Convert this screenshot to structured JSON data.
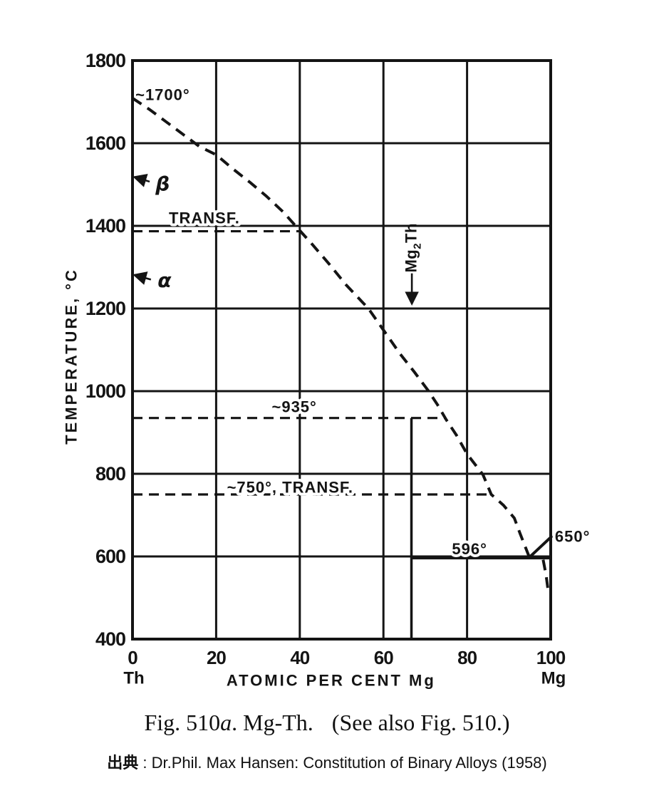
{
  "figure": {
    "caption": {
      "prefix": "Fig. 510",
      "italic_part": "a",
      "middle": ". Mg-Th.",
      "suffix": "(See also Fig. 510.)"
    },
    "source": {
      "label": "出典",
      "text": " : Dr.Phil. Max Hansen: Constitution of Binary Alloys (1958)"
    }
  },
  "chart_data": {
    "type": "line",
    "title": "Mg-Th binary alloy phase diagram",
    "xlabel": "ATOMIC PER CENT Mg",
    "ylabel": "TEMPERATURE, °C",
    "xlim": [
      0,
      100
    ],
    "ylim": [
      400,
      1800
    ],
    "x_ticks": [
      0,
      20,
      40,
      60,
      80,
      100
    ],
    "y_ticks": [
      1800,
      1600,
      1400,
      1200,
      1000,
      800,
      600,
      400
    ],
    "x_endpoint_labels": {
      "left": "Th",
      "right": "Mg"
    },
    "grid": true,
    "line_color": "#141414",
    "series": [
      {
        "name": "liquidus",
        "style": "dashed",
        "points": [
          [
            0,
            1709
          ],
          [
            4,
            1682
          ],
          [
            8,
            1652
          ],
          [
            12,
            1622
          ],
          [
            16,
            1592
          ],
          [
            20,
            1572
          ],
          [
            24,
            1538
          ],
          [
            28,
            1506
          ],
          [
            32,
            1472
          ],
          [
            36,
            1434
          ],
          [
            39,
            1400
          ],
          [
            43,
            1355
          ],
          [
            47,
            1308
          ],
          [
            51,
            1258
          ],
          [
            56.4,
            1200
          ],
          [
            60,
            1148
          ],
          [
            64,
            1090
          ],
          [
            67.5,
            1045
          ],
          [
            70.8,
            1000
          ],
          [
            73,
            966
          ],
          [
            75,
            931
          ],
          [
            77.5,
            893
          ],
          [
            80,
            848
          ],
          [
            83.8,
            798
          ],
          [
            85.8,
            750
          ],
          [
            88.7,
            724
          ],
          [
            91.3,
            693
          ],
          [
            92.7,
            655
          ],
          [
            94.9,
            598
          ]
        ]
      },
      {
        "name": "mg-liquidus-to-650",
        "style": "solid",
        "points": [
          [
            94.9,
            598
          ],
          [
            100.4,
            650
          ]
        ]
      },
      {
        "name": "mg-rich-boundary-below-eutectic",
        "style": "dashed",
        "points": [
          [
            98.2,
            592
          ],
          [
            98.9,
            555
          ],
          [
            99.4,
            516
          ]
        ]
      }
    ],
    "isotherms": [
      {
        "name": "transformation-1387",
        "temp_c": 1387,
        "from_percent": 0,
        "to_percent": 40,
        "style": "dashed"
      },
      {
        "name": "isotherm-935",
        "temp_c": 935,
        "from_percent": 0,
        "to_percent": 75,
        "style": "dashed"
      },
      {
        "name": "isotherm-750-transf",
        "temp_c": 750,
        "from_percent": 0,
        "to_percent": 85.8,
        "style": "dashed"
      },
      {
        "name": "eutectic-596",
        "temp_c": 596,
        "from_percent": 66.7,
        "to_percent": 100,
        "style": "solid"
      }
    ],
    "compound_line": {
      "name": "mg2th-composition-line",
      "at_percent": 66.7,
      "from_temp": 935,
      "to_temp": 400
    },
    "compound_label": {
      "name": "mg2th-label",
      "parts": [
        {
          "t": "Mg"
        },
        {
          "t": "2",
          "sub": true
        },
        {
          "t": "Th"
        }
      ],
      "at_percent": 67.9,
      "at_temp": 1287
    },
    "annotations": [
      {
        "name": "liquidus-start-temp-label",
        "text": "~1700°",
        "p": 0.7,
        "t": 1717,
        "anchor": "start",
        "knockout": false,
        "greek": false
      },
      {
        "name": "beta-phase-label",
        "text": "β",
        "p": 5.5,
        "t": 1502,
        "anchor": "start",
        "knockout": false,
        "greek": true
      },
      {
        "name": "transf-label",
        "text": "TRANSF.",
        "p": 17.2,
        "t": 1419,
        "anchor": "middle",
        "knockout": true,
        "greek": false
      },
      {
        "name": "alpha-phase-label",
        "text": "α",
        "p": 6.0,
        "t": 1268,
        "anchor": "start",
        "knockout": false,
        "greek": true
      },
      {
        "name": "isotherm-935-label",
        "text": "~935°",
        "p": 38.7,
        "t": 962,
        "anchor": "middle",
        "knockout": true,
        "greek": false
      },
      {
        "name": "isotherm-750-label",
        "text": "~750°, TRANSF.",
        "p": 37.7,
        "t": 767,
        "anchor": "middle",
        "knockout": true,
        "greek": false
      },
      {
        "name": "eutectic-temp-label",
        "text": "596°",
        "p": 80.6,
        "t": 618,
        "anchor": "middle",
        "knockout": true,
        "greek": false
      },
      {
        "name": "mg-melting-label",
        "text": "650°",
        "p": 101.0,
        "t": 648,
        "anchor": "start",
        "knockout": true,
        "greek": false
      }
    ],
    "arrows": [
      {
        "name": "beta-arrow",
        "from": [
          4.1,
          1507
        ],
        "to": [
          0.5,
          1518
        ]
      },
      {
        "name": "alpha-arrow",
        "from": [
          4.4,
          1270
        ],
        "to": [
          0.5,
          1281
        ]
      },
      {
        "name": "mg2th-arrow",
        "from": [
          66.8,
          1285
        ],
        "to": [
          66.8,
          1212
        ]
      }
    ]
  }
}
